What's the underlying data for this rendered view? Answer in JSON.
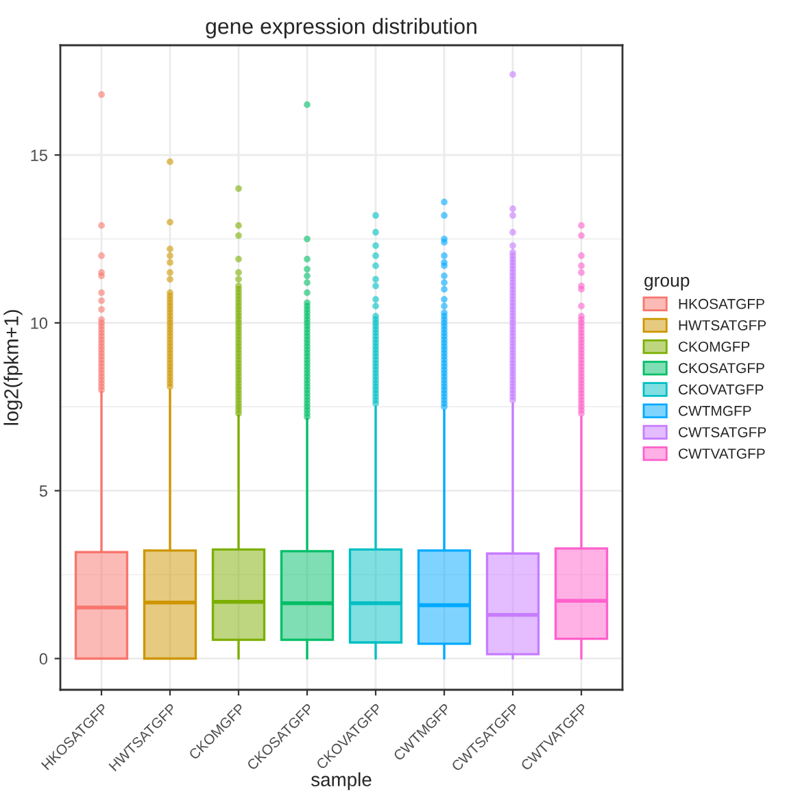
{
  "chart_data": {
    "type": "box",
    "title": "gene expression distribution",
    "xlabel": "sample",
    "ylabel": "log2(fpkm+1)",
    "legend_title": "group",
    "legend": "right",
    "grid": true,
    "categories": [
      "HKOSATGFP",
      "HWTSATGFP",
      "CKOMGFP",
      "CKOSATGFP",
      "CKOVATGFP",
      "CWTMGFP",
      "CWTSATGFP",
      "CWTVATGFP"
    ],
    "ylim": [
      -0.93,
      18.27
    ],
    "yticks": [
      0,
      5,
      10,
      15
    ],
    "series": [
      {
        "name": "HKOSATGFP",
        "color": "#f8766d",
        "boxes": [
          {
            "low": 0,
            "q1": 0,
            "median": 1.52,
            "q3": 3.17,
            "high": 7.95,
            "outliers": [
              16.8,
              12.9,
              12.0,
              11.5,
              11.4,
              10.9,
              10.66,
              10.4,
              10.1,
              10.0,
              9.9,
              9.8,
              9.7,
              9.6,
              9.5,
              9.4,
              9.3,
              9.2,
              9.1,
              9.0,
              8.9,
              8.8,
              8.7,
              8.6,
              8.5,
              8.4,
              8.3,
              8.2,
              8.1,
              8.0
            ]
          },
          null,
          null,
          null,
          null,
          null,
          null,
          null
        ]
      },
      {
        "name": "HWTSATGFP",
        "color": "#cd9600",
        "boxes": [
          null,
          {
            "low": 0,
            "q1": 0,
            "median": 1.67,
            "q3": 3.22,
            "high": 8.0,
            "outliers": [
              14.8,
              13.0,
              12.2,
              12.0,
              11.8,
              11.5,
              11.3,
              10.9,
              10.8,
              10.7,
              10.6,
              10.5,
              10.4,
              10.3,
              10.2,
              10.1,
              10.0,
              9.9,
              9.8,
              9.7,
              9.6,
              9.5,
              9.4,
              9.3,
              9.2,
              9.1,
              9.0,
              8.9,
              8.8,
              8.7,
              8.6,
              8.5,
              8.4,
              8.3,
              8.2,
              8.1
            ]
          },
          null,
          null,
          null,
          null,
          null,
          null
        ]
      },
      {
        "name": "CKOMGFP",
        "color": "#7cae00",
        "boxes": [
          null,
          null,
          {
            "low": 0,
            "q1": 0.56,
            "median": 1.69,
            "q3": 3.25,
            "high": 7.25,
            "outliers": [
              14.0,
              12.9,
              12.6,
              11.9,
              11.5,
              11.3,
              11.1,
              11.0,
              10.9,
              10.8,
              10.7,
              10.6,
              10.5,
              10.4,
              10.3,
              10.2,
              10.1,
              10.0,
              9.9,
              9.8,
              9.7,
              9.6,
              9.5,
              9.4,
              9.3,
              9.2,
              9.1,
              9.0,
              8.9,
              8.8,
              8.7,
              8.6,
              8.5,
              8.4,
              8.3,
              8.2,
              8.1,
              8.0,
              7.9,
              7.8,
              7.7,
              7.6,
              7.5,
              7.4,
              7.3
            ]
          },
          null,
          null,
          null,
          null,
          null
        ]
      },
      {
        "name": "CKOSATGFP",
        "color": "#00be67",
        "boxes": [
          null,
          null,
          null,
          {
            "low": 0,
            "q1": 0.56,
            "median": 1.65,
            "q3": 3.2,
            "high": 7.15,
            "outliers": [
              16.5,
              12.5,
              11.9,
              11.6,
              11.4,
              11.2,
              10.9,
              10.6,
              10.5,
              10.4,
              10.3,
              10.2,
              10.1,
              10.0,
              9.9,
              9.8,
              9.7,
              9.6,
              9.5,
              9.4,
              9.3,
              9.2,
              9.1,
              9.0,
              8.9,
              8.8,
              8.7,
              8.6,
              8.5,
              8.4,
              8.3,
              8.2,
              8.1,
              8.0,
              7.9,
              7.8,
              7.7,
              7.6,
              7.5,
              7.4,
              7.3,
              7.2
            ]
          },
          null,
          null,
          null,
          null
        ]
      },
      {
        "name": "CKOVATGFP",
        "color": "#00bfc4",
        "boxes": [
          null,
          null,
          null,
          null,
          {
            "low": 0,
            "q1": 0.48,
            "median": 1.65,
            "q3": 3.25,
            "high": 7.5,
            "outliers": [
              13.2,
              12.7,
              12.3,
              12.0,
              11.7,
              11.3,
              11.1,
              10.7,
              10.5,
              10.2,
              10.1,
              10.0,
              9.9,
              9.8,
              9.7,
              9.6,
              9.5,
              9.4,
              9.3,
              9.2,
              9.1,
              9.0,
              8.9,
              8.8,
              8.7,
              8.6,
              8.5,
              8.4,
              8.3,
              8.2,
              8.1,
              8.0,
              7.9,
              7.8,
              7.7,
              7.6
            ]
          },
          null,
          null,
          null
        ]
      },
      {
        "name": "CWTMGFP",
        "color": "#00a9ff",
        "boxes": [
          null,
          null,
          null,
          null,
          null,
          {
            "low": 0,
            "q1": 0.44,
            "median": 1.59,
            "q3": 3.22,
            "high": 7.4,
            "outliers": [
              13.6,
              13.2,
              12.5,
              12.4,
              12.0,
              11.8,
              11.7,
              11.4,
              11.2,
              11.0,
              10.7,
              10.5,
              10.3,
              10.2,
              10.1,
              10.0,
              9.9,
              9.8,
              9.7,
              9.6,
              9.5,
              9.4,
              9.3,
              9.2,
              9.1,
              9.0,
              8.9,
              8.8,
              8.7,
              8.6,
              8.5,
              8.4,
              8.3,
              8.2,
              8.1,
              8.0,
              7.9,
              7.8,
              7.7,
              7.6,
              7.5
            ]
          },
          null,
          null
        ]
      },
      {
        "name": "CWTSATGFP",
        "color": "#c77cff",
        "boxes": [
          null,
          null,
          null,
          null,
          null,
          null,
          {
            "low": 0,
            "q1": 0.13,
            "median": 1.3,
            "q3": 3.13,
            "high": 7.6,
            "outliers": [
              17.4,
              13.4,
              13.2,
              12.7,
              12.3,
              12.1,
              12.0,
              11.9,
              11.8,
              11.7,
              11.6,
              11.5,
              11.4,
              11.3,
              11.2,
              11.1,
              11.0,
              10.9,
              10.8,
              10.7,
              10.6,
              10.5,
              10.4,
              10.3,
              10.2,
              10.1,
              10.0,
              9.9,
              9.8,
              9.7,
              9.6,
              9.5,
              9.4,
              9.3,
              9.2,
              9.1,
              9.0,
              8.9,
              8.8,
              8.7,
              8.6,
              8.5,
              8.4,
              8.3,
              8.2,
              8.1,
              8.0,
              7.9,
              7.8,
              7.7
            ]
          },
          null
        ]
      },
      {
        "name": "CWTVATGFP",
        "color": "#ff61cc",
        "boxes": [
          null,
          null,
          null,
          null,
          null,
          null,
          null,
          {
            "low": 0,
            "q1": 0.59,
            "median": 1.72,
            "q3": 3.28,
            "high": 7.2,
            "outliers": [
              12.9,
              12.6,
              12.0,
              11.7,
              11.5,
              11.1,
              11.0,
              10.5,
              10.2,
              10.1,
              10.0,
              9.9,
              9.8,
              9.7,
              9.6,
              9.5,
              9.4,
              9.3,
              9.2,
              9.1,
              9.0,
              8.9,
              8.8,
              8.7,
              8.6,
              8.5,
              8.4,
              8.3,
              8.2,
              8.1,
              8.0,
              7.9,
              7.8,
              7.7,
              7.6,
              7.5,
              7.4,
              7.3
            ]
          }
        ]
      }
    ]
  }
}
